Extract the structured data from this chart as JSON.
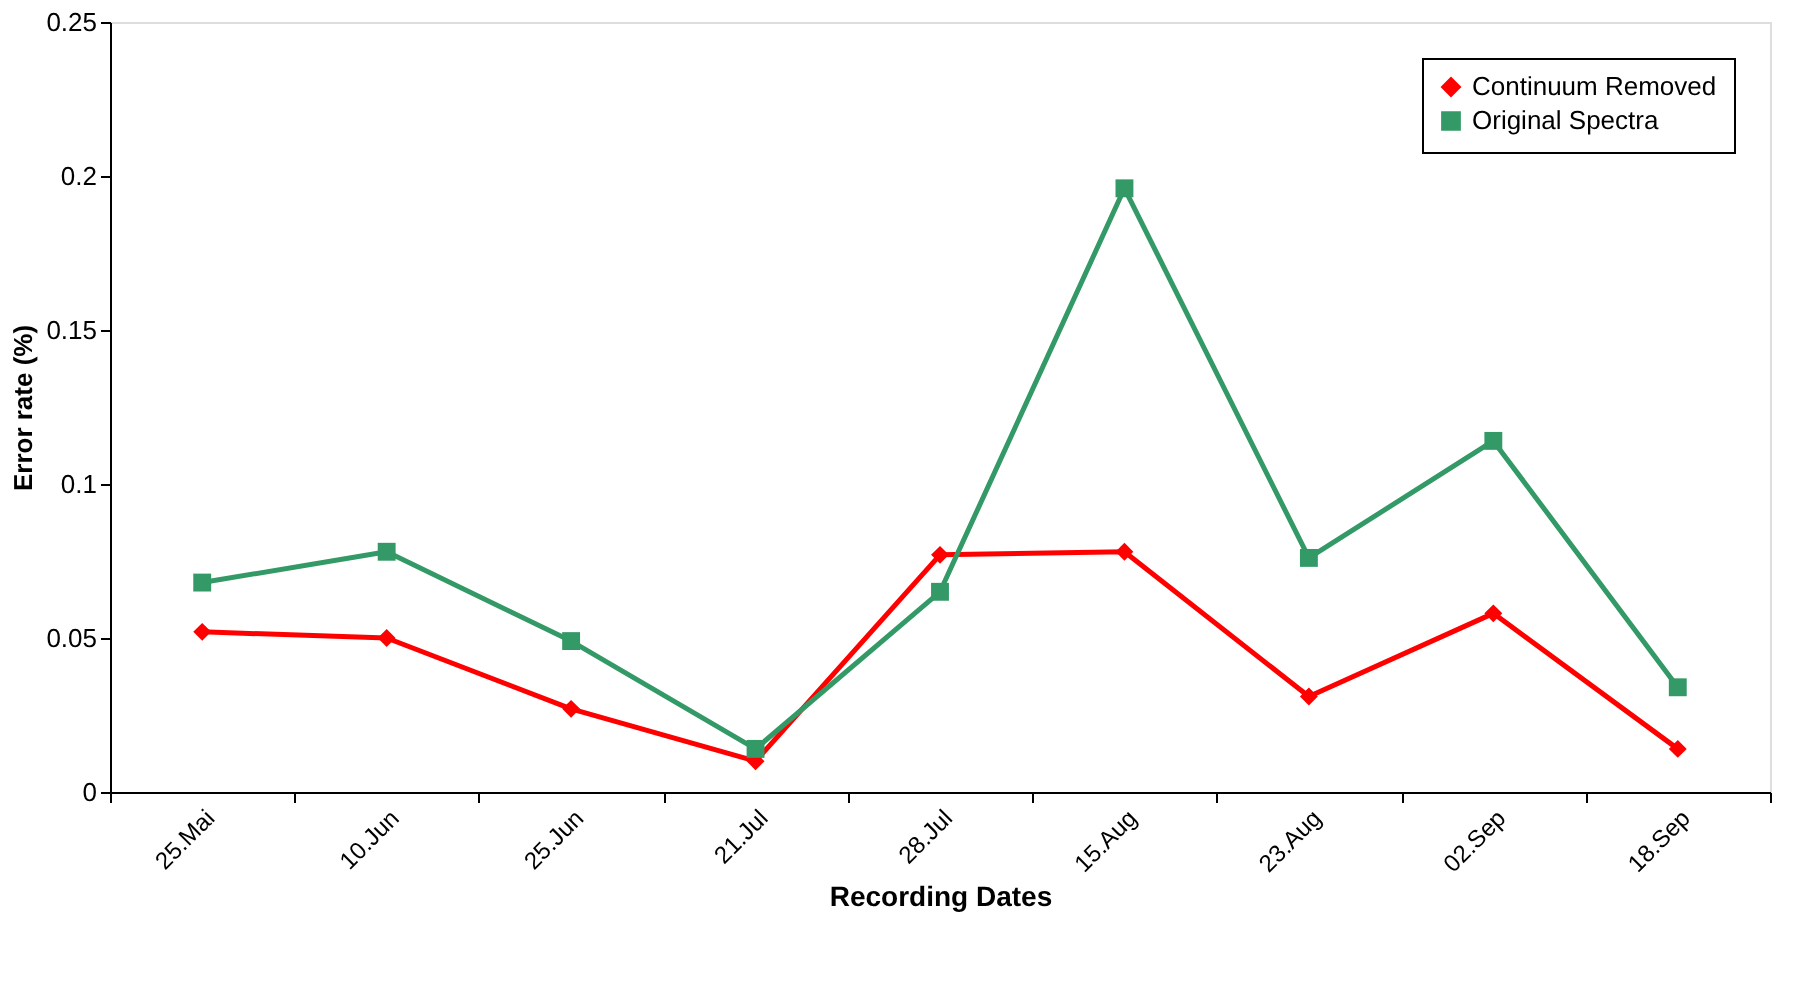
{
  "chart_data": {
    "type": "line",
    "xlabel": "Recording Dates",
    "ylabel": "Error rate (%)",
    "categories": [
      "25.Mai",
      "10.Jun",
      "25.Jun",
      "21.Jul",
      "28.Jul",
      "15.Aug",
      "23.Aug",
      "02.Sep",
      "18.Sep"
    ],
    "series": [
      {
        "name": "Continuum Removed",
        "color": "#ff0000",
        "marker": "diamond",
        "values": [
          0.052,
          0.05,
          0.027,
          0.01,
          0.077,
          0.078,
          0.031,
          0.058,
          0.014
        ]
      },
      {
        "name": "Original Spectra",
        "color": "#339966",
        "marker": "square",
        "values": [
          0.068,
          0.078,
          0.049,
          0.014,
          0.065,
          0.196,
          0.076,
          0.114,
          0.034
        ]
      }
    ],
    "ylim": [
      0,
      0.25
    ],
    "yticks": [
      0,
      0.05,
      0.1,
      0.15,
      0.2,
      0.25
    ],
    "grid": false,
    "legend": "top right",
    "line_style": "solid"
  }
}
